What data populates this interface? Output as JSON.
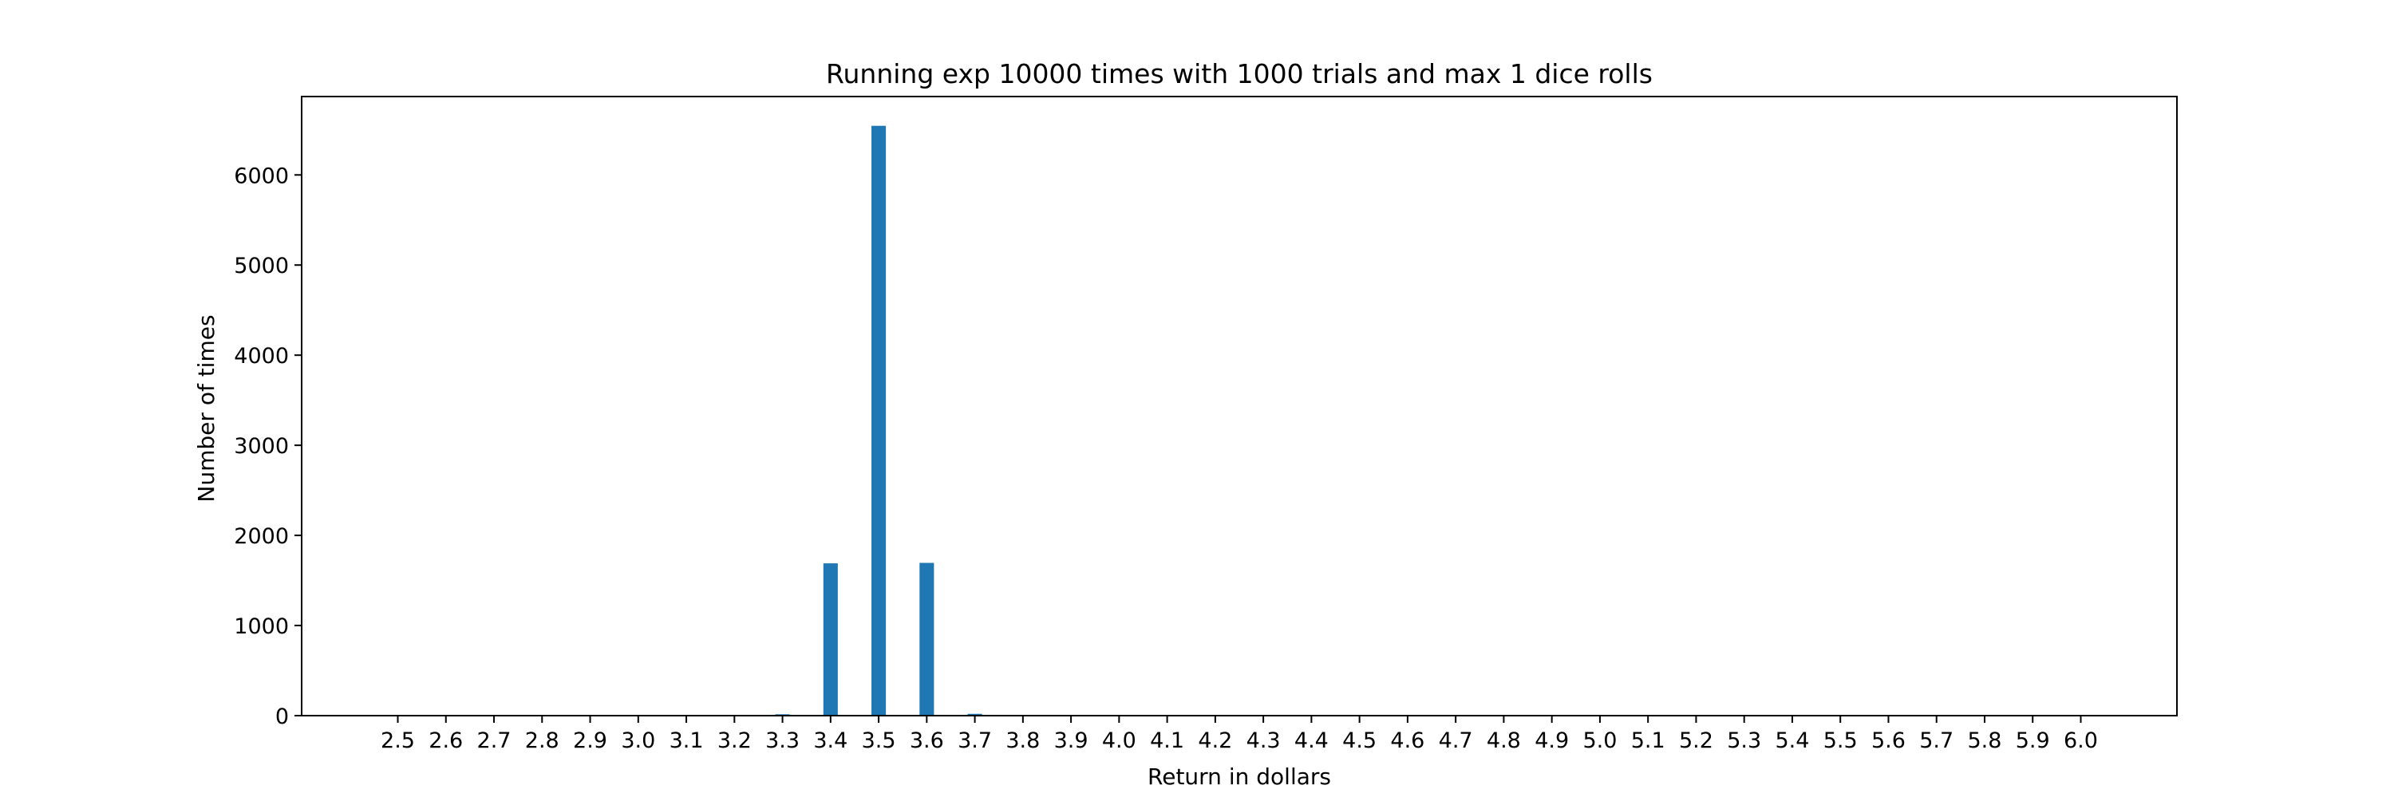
{
  "chart_data": {
    "type": "bar",
    "title": "Running exp 10000 times with 1000 trials and max 1 dice rolls",
    "xlabel": "Return in dollars",
    "ylabel": "Number of times",
    "x": [
      3.3,
      3.4,
      3.5,
      3.6,
      3.7
    ],
    "values": [
      15,
      1690,
      6545,
      1695,
      20
    ],
    "xticks": [
      "2.5",
      "2.6",
      "2.7",
      "2.8",
      "2.9",
      "3.0",
      "3.1",
      "3.2",
      "3.3",
      "3.4",
      "3.5",
      "3.6",
      "3.7",
      "3.8",
      "3.9",
      "4.0",
      "4.1",
      "4.2",
      "4.3",
      "4.4",
      "4.5",
      "4.6",
      "4.7",
      "4.8",
      "4.9",
      "5.0",
      "5.1",
      "5.2",
      "5.3",
      "5.4",
      "5.5",
      "5.6",
      "5.7",
      "5.8",
      "5.9",
      "6.0"
    ],
    "yticks": [
      0,
      1000,
      2000,
      3000,
      4000,
      5000,
      6000
    ],
    "xlim": [
      2.3,
      6.2
    ],
    "ylim": [
      0,
      6870
    ],
    "grid": false,
    "bar_color": "#1f77b4"
  }
}
